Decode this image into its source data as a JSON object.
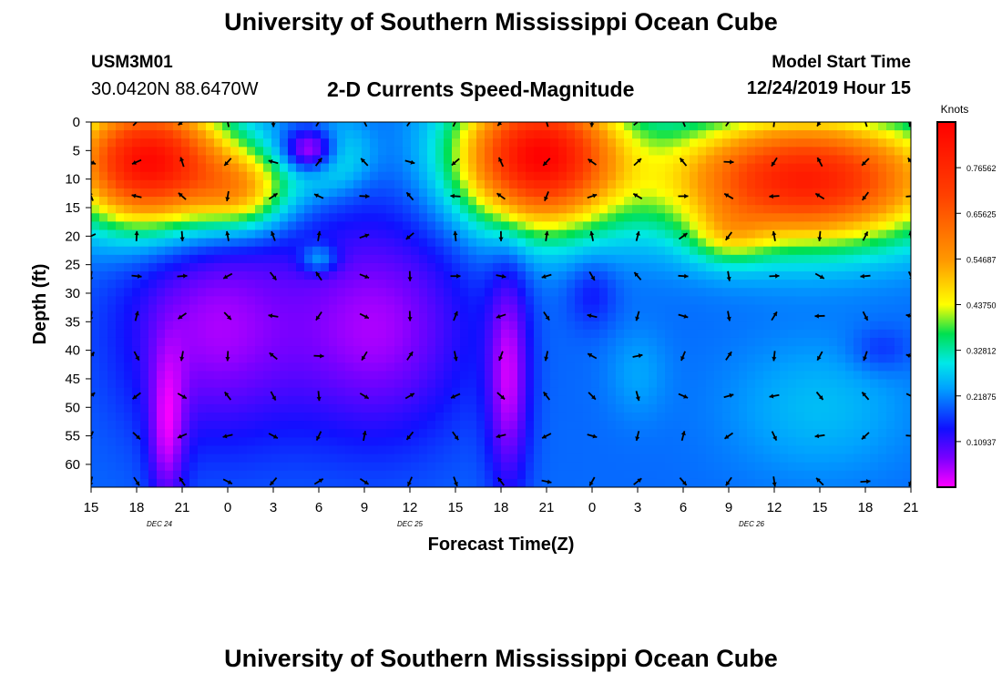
{
  "header": {
    "title": "University of Southern Mississippi Ocean Cube",
    "station_id": "USM3M01",
    "coords": "30.0420N 88.6470W",
    "subtitle": "2-D Currents Speed-Magnitude",
    "start_label": "Model Start Time",
    "start_value": "12/24/2019 Hour 15"
  },
  "footer": {
    "title": "University of Southern Mississippi Ocean Cube"
  },
  "chart_data": {
    "type": "heatmap",
    "title": "2-D Currents Speed-Magnitude",
    "xlabel": "Forecast Time(Z)",
    "ylabel": "Depth (ft)",
    "x_hours_range": [
      0,
      54
    ],
    "x_tick_labels": [
      "15",
      "18",
      "21",
      "0",
      "3",
      "6",
      "9",
      "12",
      "15",
      "18",
      "21",
      "0",
      "3",
      "6",
      "9",
      "12",
      "15",
      "18",
      "21"
    ],
    "date_labels": [
      {
        "label": "DEC 24",
        "hour": 4.5
      },
      {
        "label": "DEC 25",
        "hour": 21
      },
      {
        "label": "DEC 26",
        "hour": 43.5
      }
    ],
    "y_ticks": [
      0,
      5,
      10,
      15,
      20,
      25,
      30,
      35,
      40,
      45,
      50,
      55,
      60
    ],
    "ylim": [
      0,
      64
    ],
    "colorbar": {
      "units": "Knots",
      "range": [
        0,
        0.875
      ],
      "tick_values": [
        0.10937,
        0.21875,
        0.32812,
        0.4375,
        0.54687,
        0.65625,
        0.76562
      ],
      "tick_labels": [
        "0.10937",
        "0.21875",
        "0.32812",
        "0.43750",
        "0.54687",
        "0.65625",
        "0.76562"
      ]
    },
    "speed_knots_samples": [
      {
        "hour": 3.5,
        "depth": 8,
        "speed": 0.82
      },
      {
        "hour": 10,
        "depth": 14,
        "speed": 0.52
      },
      {
        "hour": 14.5,
        "depth": 24,
        "speed": 0.14
      },
      {
        "hour": 21,
        "depth": 35,
        "speed": 0.08
      },
      {
        "hour": 30,
        "depth": 5,
        "speed": 0.82
      },
      {
        "hour": 42,
        "depth": 20,
        "speed": 0.55
      },
      {
        "hour": 27,
        "depth": 50,
        "speed": 0.04
      },
      {
        "hour": 5,
        "depth": 50,
        "speed": 0.04
      },
      {
        "hour": 49,
        "depth": 48,
        "speed": 0.26
      }
    ],
    "vector_arrows": {
      "hour_step": 3,
      "depth_levels": [
        0,
        7,
        13,
        20,
        27,
        34,
        41,
        48,
        55,
        63
      ]
    }
  }
}
